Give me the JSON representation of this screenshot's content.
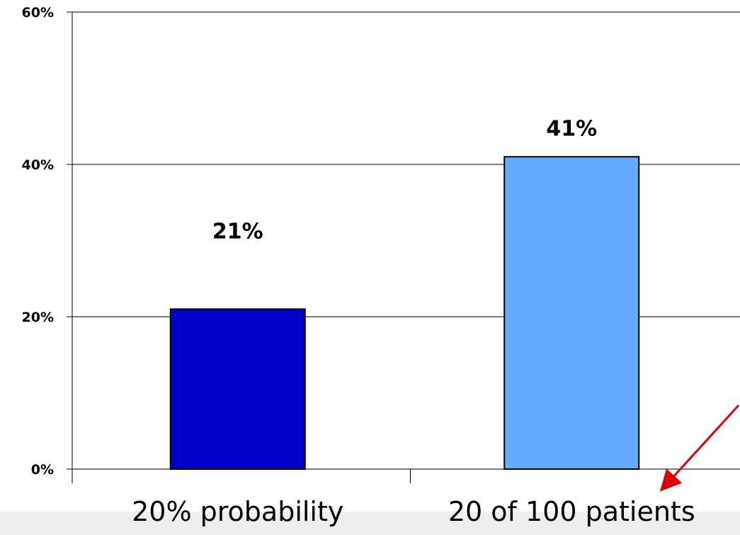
{
  "chart_data": {
    "type": "bar",
    "title": "",
    "xlabel": "",
    "ylabel": "",
    "categories": [
      "20% probability",
      "20 of 100 patients"
    ],
    "values": [
      21,
      41
    ],
    "value_labels": [
      "21%",
      "41%"
    ],
    "colors": [
      "#0000cc",
      "#66aaff"
    ],
    "ylim": [
      0,
      60
    ],
    "yticks": [
      0,
      20,
      40,
      60
    ],
    "ytick_labels": [
      "0%",
      "20%",
      "40%",
      "60%"
    ],
    "grid": true,
    "legend": "none",
    "annotation": {
      "type": "arrow",
      "color": "#e00000",
      "points_to": "20 of 100 patients"
    }
  }
}
